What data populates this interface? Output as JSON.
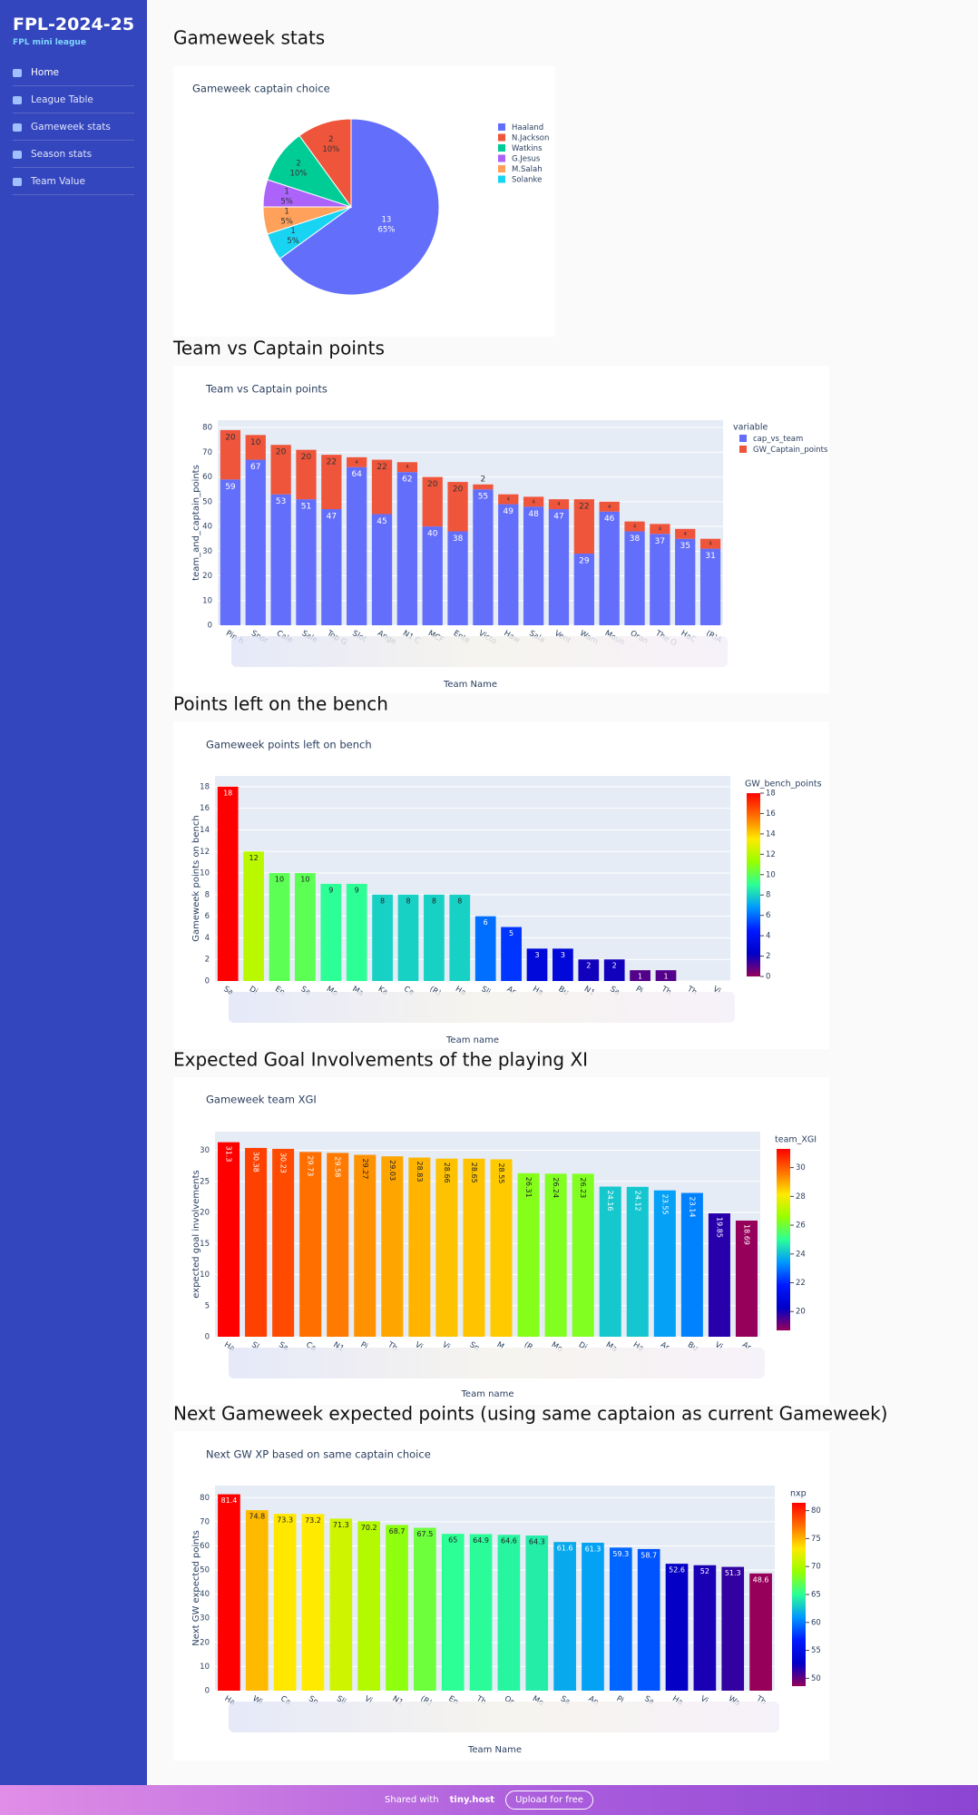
{
  "sidebar": {
    "title": "FPL-2024-25",
    "subtitle": "FPL mini league",
    "nav": [
      "Home",
      "League Table",
      "Gameweek stats",
      "Season stats",
      "Team Value"
    ]
  },
  "headings": [
    "Gameweek stats",
    "Team vs Captain points",
    "Points left on the bench",
    "Expected Goal Involvements of the playing XI",
    "Next Gameweek expected points (using same captaion as current Gameweek)"
  ],
  "footer": {
    "shared": "Shared with",
    "brand": "tiny.host",
    "button": "Upload for free"
  },
  "chart_data": [
    {
      "type": "pie",
      "title": "Gameweek captain choice",
      "categories": [
        "Haaland",
        "N.Jackson",
        "Watkins",
        "G.Jesus",
        "M.Salah",
        "Solanke"
      ],
      "values": [
        13,
        2,
        2,
        1,
        1,
        1
      ],
      "value_labels": [
        "65%",
        "10%",
        "10%",
        "5%",
        "5%",
        "5%"
      ],
      "colors": [
        "#636efa",
        "#ef553b",
        "#00cc96",
        "#ab63fa",
        "#ffa15a",
        "#19d3f3"
      ]
    },
    {
      "type": "stacked_bar",
      "title": "Team vs Captain points",
      "x_label": "Team Name",
      "y_label": "team_and_captain_points",
      "legend_title": "variable",
      "categories": [
        "Pin h",
        "Snor",
        "Cale",
        "Sale",
        "Top G",
        "Slot",
        "Ange",
        "N1 C",
        "MCF",
        "Ente",
        "Victo",
        "Haw",
        "Sala",
        "Vent",
        "Warn",
        "Moun",
        "Oran",
        "The O",
        "HaC",
        "(R)A"
      ],
      "series": [
        {
          "name": "cap_vs_team",
          "color": "#636efa",
          "values": [
            59,
            67,
            53,
            51,
            47,
            64,
            45,
            62,
            40,
            38,
            55,
            49,
            48,
            47,
            29,
            46,
            38,
            37,
            35,
            31
          ]
        },
        {
          "name": "GW_Captain_points",
          "color": "#ef553b",
          "values": [
            20,
            10,
            20,
            20,
            22,
            4,
            22,
            4,
            20,
            20,
            2,
            4,
            4,
            4,
            22,
            4,
            4,
            4,
            4,
            4
          ]
        }
      ],
      "ylim": [
        0,
        83
      ],
      "yticks": [
        0,
        10,
        20,
        30,
        40,
        50,
        60,
        70,
        80
      ],
      "grid": true
    },
    {
      "type": "bar",
      "title": "Gameweek points left on bench",
      "x_label": "Team name",
      "y_label": "Gameweek points on bench",
      "colorbar_title": "GW_bench_points",
      "categories": [
        "Sa",
        "Di",
        "En",
        "Sa",
        "Mo",
        "Ma",
        "Ka",
        "Ca",
        "(R)",
        "Ha",
        "Sli",
        "Ar",
        "Ha",
        "Bu",
        "N1",
        "Sa",
        "Pi",
        "Th",
        "Th",
        "Vi"
      ],
      "values": [
        18,
        12,
        10,
        10,
        9,
        9,
        8,
        8,
        8,
        8,
        6,
        5,
        3,
        3,
        2,
        2,
        1,
        1,
        0,
        0
      ],
      "ylim": [
        0,
        19
      ],
      "yticks": [
        0,
        2,
        4,
        6,
        8,
        10,
        12,
        14,
        16,
        18
      ],
      "clim": [
        0,
        18
      ],
      "cticks": [
        0,
        2,
        4,
        6,
        8,
        10,
        12,
        14,
        16,
        18
      ],
      "colorscale": [
        "#96005a",
        "#0000c8",
        "#0019ff",
        "#0098ff",
        "#2cff96",
        "#97ff00",
        "#ffea00",
        "#ff6f00",
        "#ff0000"
      ],
      "grid": true
    },
    {
      "type": "bar",
      "title": "Gameweek team XGI",
      "x_label": "Team name",
      "y_label": "expected goal involvements",
      "colorbar_title": "team_XGI",
      "textangle": 90,
      "categories": [
        "Ha",
        "Sl",
        "Sa",
        "Ca",
        "N1",
        "Pi",
        "Th",
        "Vi",
        "Vi",
        "Sn",
        "M",
        "(R",
        "Mo",
        "Di",
        "Ma",
        "Ha",
        "Ar",
        "Bu",
        "Vi",
        "Ar"
      ],
      "values": [
        31.3,
        30.38,
        30.23,
        29.73,
        29.58,
        29.27,
        29.03,
        28.83,
        28.66,
        28.65,
        28.55,
        26.31,
        26.24,
        26.23,
        24.16,
        24.12,
        23.55,
        23.14,
        19.85,
        18.69
      ],
      "ylim": [
        0,
        33
      ],
      "yticks": [
        0,
        5,
        10,
        15,
        20,
        25,
        30
      ],
      "clim": [
        18.69,
        31.3
      ],
      "cticks": [
        20,
        22,
        24,
        26,
        28,
        30
      ],
      "colorscale": [
        "#96005a",
        "#0000c8",
        "#0019ff",
        "#0098ff",
        "#2cff96",
        "#97ff00",
        "#ffea00",
        "#ff6f00",
        "#ff0000"
      ],
      "grid": true
    },
    {
      "type": "bar",
      "title": "Next GW XP based on same captain choice",
      "x_label": "Team Name",
      "y_label": "Next GW expected points",
      "colorbar_title": "nxp",
      "categories": [
        "Ha",
        "Wi",
        "Ca",
        "Sn",
        "Sli",
        "Vi",
        "N1",
        "(R)",
        "En",
        "Th",
        "Or",
        "Mo",
        "Sa",
        "An",
        "Pi",
        "Sa",
        "Ha",
        "Vi",
        "Wa",
        "Th"
      ],
      "values": [
        81.4,
        74.8,
        73.3,
        73.2,
        71.3,
        70.2,
        68.7,
        67.5,
        65,
        64.9,
        64.6,
        64.3,
        61.6,
        61.3,
        59.3,
        58.7,
        52.6,
        52,
        51.3,
        48.6
      ],
      "ylim": [
        0,
        85
      ],
      "yticks": [
        0,
        10,
        20,
        30,
        40,
        50,
        60,
        70,
        80
      ],
      "clim": [
        48.6,
        81.4
      ],
      "cticks": [
        50,
        55,
        60,
        65,
        70,
        75,
        80
      ],
      "colorscale": [
        "#96005a",
        "#0000c8",
        "#0019ff",
        "#0098ff",
        "#2cff96",
        "#97ff00",
        "#ffea00",
        "#ff6f00",
        "#ff0000"
      ],
      "grid": true
    }
  ]
}
